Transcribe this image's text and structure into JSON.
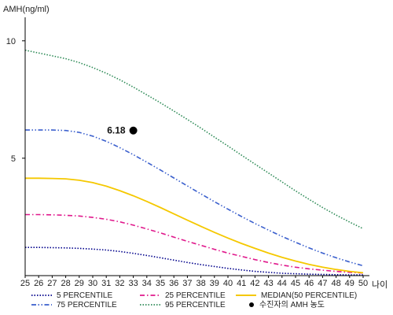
{
  "chart_data": {
    "type": "line",
    "ylabel": "AMH(ng/ml)",
    "xlabel": "나이",
    "xlim": [
      25,
      50
    ],
    "ylim": [
      0,
      11
    ],
    "x_ticks": [
      25,
      26,
      27,
      28,
      29,
      30,
      31,
      32,
      33,
      34,
      35,
      36,
      37,
      38,
      39,
      40,
      41,
      42,
      43,
      44,
      45,
      46,
      47,
      48,
      49,
      50
    ],
    "y_ticks": [
      5,
      10
    ],
    "x": [
      25,
      26,
      27,
      28,
      29,
      30,
      31,
      32,
      33,
      34,
      35,
      36,
      37,
      38,
      39,
      40,
      41,
      42,
      43,
      44,
      45,
      46,
      47,
      48,
      49,
      50
    ],
    "series": [
      {
        "name": "5 PERCENTILE",
        "color": "#00008b",
        "dash": "dotted",
        "values": [
          1.2,
          1.2,
          1.19,
          1.18,
          1.16,
          1.13,
          1.09,
          1.03,
          0.95,
          0.86,
          0.76,
          0.66,
          0.56,
          0.47,
          0.39,
          0.31,
          0.24,
          0.18,
          0.14,
          0.1,
          0.08,
          0.06,
          0.05,
          0.04,
          0.03,
          0.03
        ]
      },
      {
        "name": "25 PERCENTILE",
        "color": "#e0198c",
        "dash": "dash-dot",
        "values": [
          2.6,
          2.6,
          2.59,
          2.57,
          2.54,
          2.48,
          2.4,
          2.29,
          2.15,
          1.99,
          1.82,
          1.64,
          1.46,
          1.29,
          1.12,
          0.96,
          0.82,
          0.68,
          0.56,
          0.45,
          0.36,
          0.29,
          0.23,
          0.18,
          0.14,
          0.11
        ]
      },
      {
        "name": "75 PERCENTILE",
        "color": "#3a5fcd",
        "dash": "dash-dot-dot",
        "values": [
          6.2,
          6.2,
          6.2,
          6.18,
          6.1,
          5.94,
          5.72,
          5.45,
          5.15,
          4.83,
          4.5,
          4.16,
          3.82,
          3.48,
          3.15,
          2.83,
          2.52,
          2.22,
          1.94,
          1.67,
          1.42,
          1.18,
          0.96,
          0.76,
          0.58,
          0.42
        ]
      },
      {
        "name": "95 PERCENTILE",
        "color": "#2e8b57",
        "dash": "dotted",
        "values": [
          9.6,
          9.48,
          9.36,
          9.24,
          9.07,
          8.86,
          8.62,
          8.34,
          8.03,
          7.7,
          7.36,
          7.01,
          6.65,
          6.28,
          5.9,
          5.52,
          5.13,
          4.75,
          4.37,
          3.99,
          3.61,
          3.25,
          2.9,
          2.58,
          2.28,
          2.0
        ]
      },
      {
        "name": "MEDIAN(50 PERCENTILE)",
        "color": "#f5c800",
        "dash": "solid",
        "values": [
          4.15,
          4.15,
          4.14,
          4.12,
          4.06,
          3.96,
          3.81,
          3.62,
          3.4,
          3.16,
          2.9,
          2.63,
          2.36,
          2.1,
          1.84,
          1.6,
          1.37,
          1.16,
          0.96,
          0.78,
          0.62,
          0.48,
          0.36,
          0.26,
          0.18,
          0.12
        ]
      }
    ],
    "highlight_point": {
      "name": "수진자의 AMH 농도",
      "x": 33,
      "y": 6.18,
      "label": "6.18",
      "color": "#000000"
    },
    "legend": {
      "position": "bottom",
      "entries": [
        {
          "label": "5 PERCENTILE",
          "color": "#00008b",
          "dash": "dotted",
          "symbol": "line"
        },
        {
          "label": "25 PERCENTILE",
          "color": "#e0198c",
          "dash": "dash-dot",
          "symbol": "line"
        },
        {
          "label": "MEDIAN(50 PERCENTILE)",
          "color": "#f5c800",
          "dash": "solid",
          "symbol": "line"
        },
        {
          "label": "75 PERCENTILE",
          "color": "#3a5fcd",
          "dash": "dash-dot-dot",
          "symbol": "line"
        },
        {
          "label": "95 PERCENTILE",
          "color": "#2e8b57",
          "dash": "dotted",
          "symbol": "line"
        },
        {
          "label": "수진자의 AMH 농도",
          "color": "#000000",
          "dash": "none",
          "symbol": "dot"
        }
      ]
    },
    "grid": false
  }
}
